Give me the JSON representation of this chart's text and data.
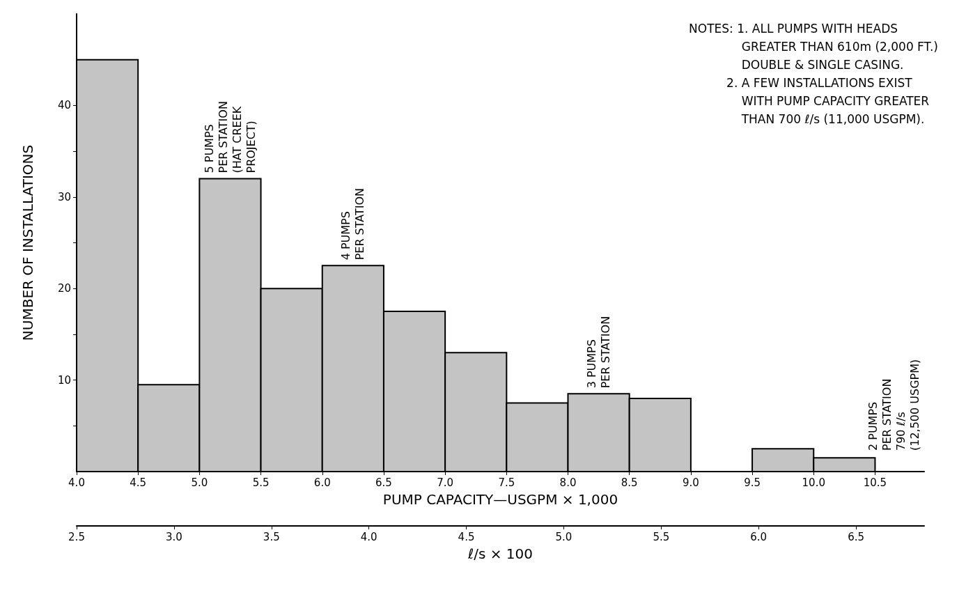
{
  "chart_data": {
    "type": "histogram",
    "xlabel": "PUMP CAPACITY—USGPM × 1,000",
    "ylabel": "NUMBER OF INSTALLATIONS",
    "x2label": "ℓ/s × 100",
    "bins": [
      4.0,
      4.5,
      5.0,
      5.5,
      6.0,
      6.5,
      7.0,
      7.5,
      8.0,
      8.5,
      9.0,
      9.5,
      10.0,
      10.5
    ],
    "values": [
      45,
      9.5,
      32,
      20,
      22.5,
      17.5,
      13,
      7.5,
      8.5,
      8,
      0,
      2.5,
      1.5
    ],
    "color": "#c4c4c4",
    "xlim": [
      4.0,
      10.9
    ],
    "xticks": [
      {
        "value": 4.0,
        "label": "4.0"
      },
      4.5,
      {
        "value": 5.0,
        "label": "5.0"
      },
      5.5,
      {
        "value": 6.0,
        "label": "6.0"
      },
      6.5,
      {
        "value": 7.0,
        "label": "7.0"
      },
      7.5,
      {
        "value": 8.0,
        "label": "8.0"
      },
      8.5,
      {
        "value": 9.0,
        "label": "9.0"
      },
      9.5,
      {
        "value": 10.0,
        "label": "10.0"
      },
      10.5
    ],
    "x2lim": [
      2.5,
      6.85
    ],
    "x2ticks": [
      2.5,
      {
        "value": 3.0,
        "label": "3.0"
      },
      3.5,
      {
        "value": 4.0,
        "label": "4.0"
      },
      4.5,
      {
        "value": 5.0,
        "label": "5.0"
      },
      5.5,
      {
        "value": 6.0,
        "label": "6.0"
      },
      6.5
    ],
    "ylim": [
      0,
      50
    ],
    "yticks": [
      {
        "value": 5,
        "label": null
      },
      10,
      {
        "value": 15,
        "label": null
      },
      20,
      {
        "value": 25,
        "label": null
      },
      30,
      {
        "value": 35,
        "label": null
      },
      40
    ],
    "grid": false,
    "annotations": [
      "NOTES: 1. ALL PUMPS WITH HEADS\n              GREATER THAN 610m (2,000 FT.)\n              DOUBLE & SINGLE CASING.\n          2. A FEW INSTALLATIONS EXIST\n              WITH PUMP CAPACITY GREATER\n              THAN 700 ℓ/s (11,000 USGPM).",
      {
        "text": "5 PUMPS\nPER STATION\n(HAT CREEK\nPROJECT)",
        "x": 5.25,
        "y": 32
      },
      {
        "text": "4 PUMPS\nPER STATION",
        "x": 6.25,
        "y": 22.5
      },
      {
        "text": "3 PUMPS\nPER STATION",
        "x": 8.25,
        "y": 8.5
      },
      "2 PUMPS\nPER STATION\n790 ℓ/s\n(12,500 USGPM)"
    ]
  }
}
